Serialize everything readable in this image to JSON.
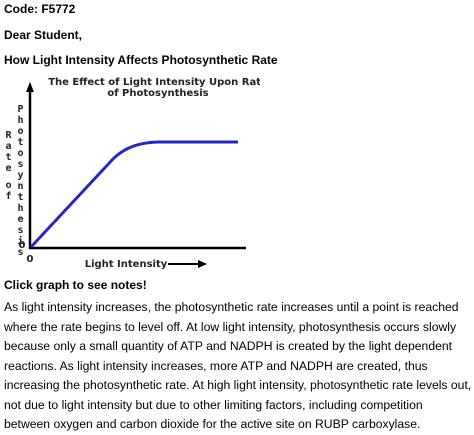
{
  "header": {
    "code": "Code: F5772",
    "greeting": "Dear Student,",
    "heading": "How Light Intensity Affects Photosynthetic Rate"
  },
  "graph": {
    "title_lines": [
      "The Effect of Light Intensity Upon Rate",
      "of Photosynthesis"
    ],
    "y_label_words": [
      "Rate",
      "of",
      "Photosynthesis"
    ],
    "y_origin": "0",
    "x_origin": "0",
    "x_label": "Light Intensity"
  },
  "prompt": "Click graph to see notes!",
  "body": "As light intensity increases, the photosynthetic rate increases until a point is reached where the rate begins to level off. At low light intensity, photosynthesis occurs slowly because only a small quantity of ATP and NADPH is created by the light dependent reactions. As light intensity increases, more ATP and NADPH are created, thus increasing the photosynthetic rate. At high light intensity, photosynthetic rate levels out, not due to light intensity but due to other limiting factors, including competition between oxygen and carbon dioxide for the active site on RUBP carboxylase."
}
